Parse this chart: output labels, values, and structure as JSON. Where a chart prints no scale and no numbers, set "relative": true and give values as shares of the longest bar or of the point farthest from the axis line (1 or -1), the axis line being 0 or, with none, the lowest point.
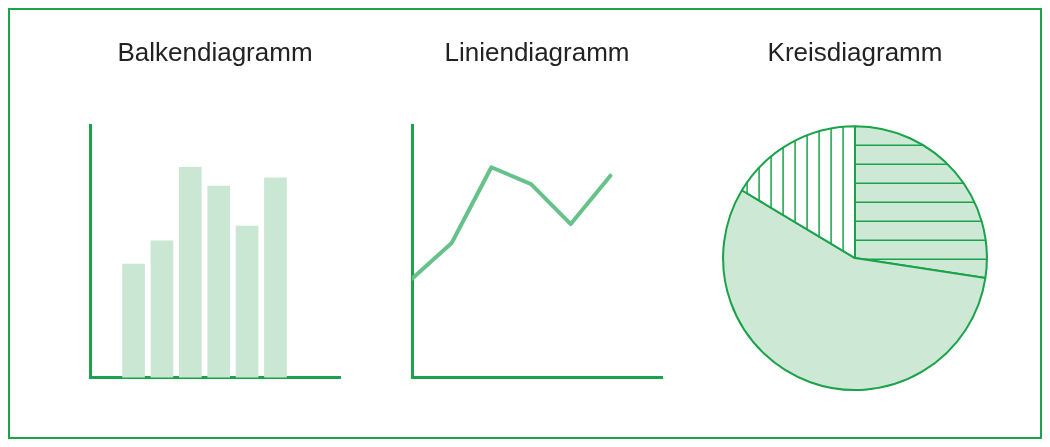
{
  "chart_data": [
    {
      "type": "bar",
      "title": "Balkendiagramm",
      "relative": true,
      "categories": [
        null,
        null,
        null,
        null,
        null,
        null
      ],
      "values": [
        0.54,
        0.65,
        1,
        0.91,
        0.72,
        0.95
      ],
      "color": "#c9e7d3",
      "grid": false,
      "legend": false
    },
    {
      "type": "line",
      "title": "Liniendiagramm",
      "relative": true,
      "categories": [
        null,
        null,
        null,
        null,
        null,
        null
      ],
      "values": [
        0.47,
        0.64,
        1,
        0.92,
        0.73,
        0.96
      ],
      "color": "#66c28a",
      "marker": "none",
      "grid": false,
      "legend": false
    },
    {
      "type": "pie",
      "title": "Kreisdiagramm",
      "categories": [
        null,
        null,
        null
      ],
      "values": [
        27.4,
        56.2,
        16.4
      ],
      "colors": [
        "#cde8d5",
        "#cde8d5",
        "#ffffff"
      ],
      "legend": false
    }
  ]
}
